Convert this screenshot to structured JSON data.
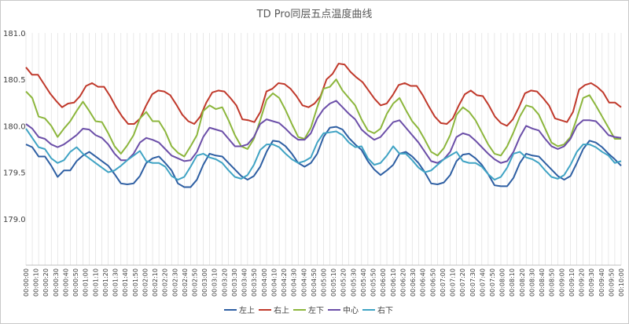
{
  "chart_data": {
    "type": "line",
    "title": "TD  Pro同层五点温度曲线",
    "xlabel": "",
    "ylabel": "",
    "ylim": [
      178.5,
      181.0
    ],
    "y_ticks": [
      "181.0",
      "180.5",
      "180.0",
      "179.5",
      "179.0"
    ],
    "y_tick_values": [
      181.0,
      180.5,
      180.0,
      179.5,
      179.0
    ],
    "x_tick_labels": [
      "00:00:00",
      "00:00:10",
      "00:00:20",
      "00:00:30",
      "00:00:40",
      "00:00:50",
      "00:01:00",
      "00:01:10",
      "00:01:20",
      "00:01:30",
      "00:01:40",
      "00:01:50",
      "00:02:00",
      "00:02:10",
      "00:02:20",
      "00:02:30",
      "00:02:40",
      "00:02:50",
      "00:03:00",
      "00:03:10",
      "00:03:20",
      "00:03:30",
      "00:03:40",
      "00:03:50",
      "00:04:00",
      "00:04:10",
      "00:04:20",
      "00:04:30",
      "00:04:40",
      "00:04:50",
      "00:05:00",
      "00:05:10",
      "00:05:20",
      "00:05:30",
      "00:05:40",
      "00:05:50",
      "00:06:00",
      "00:06:10",
      "00:06:20",
      "00:06:30",
      "00:06:40",
      "00:06:50",
      "00:07:00",
      "00:07:10",
      "00:07:20",
      "00:07:30",
      "00:07:40",
      "00:07:50",
      "00:08:00",
      "00:08:10",
      "00:08:20",
      "00:08:30",
      "00:08:40",
      "00:08:50",
      "00:09:00",
      "00:09:10",
      "00:09:20",
      "00:09:30",
      "00:09:40",
      "00:09:50",
      "00:10:00"
    ],
    "legend_position": "bottom",
    "grid": "vertical lines at every sample",
    "series": [
      {
        "name": "左上",
        "color": "#2e5fa3",
        "values": [
          179.8,
          179.77,
          179.67,
          179.67,
          179.57,
          179.45,
          179.52,
          179.52,
          179.62,
          179.68,
          179.72,
          179.67,
          179.62,
          179.57,
          179.48,
          179.38,
          179.37,
          179.38,
          179.46,
          179.6,
          179.65,
          179.67,
          179.6,
          179.52,
          179.38,
          179.34,
          179.34,
          179.42,
          179.58,
          179.7,
          179.68,
          179.67,
          179.6,
          179.53,
          179.46,
          179.42,
          179.46,
          179.56,
          179.72,
          179.84,
          179.83,
          179.78,
          179.7,
          179.6,
          179.56,
          179.6,
          179.7,
          179.88,
          179.98,
          179.99,
          179.96,
          179.87,
          179.8,
          179.74,
          179.62,
          179.53,
          179.47,
          179.52,
          179.58,
          179.7,
          179.72,
          179.67,
          179.6,
          179.5,
          179.38,
          179.37,
          179.39,
          179.47,
          179.62,
          179.69,
          179.7,
          179.65,
          179.58,
          179.48,
          179.36,
          179.35,
          179.35,
          179.44,
          179.6,
          179.7,
          179.68,
          179.67,
          179.6,
          179.53,
          179.46,
          179.42,
          179.46,
          179.6,
          179.75,
          179.84,
          179.82,
          179.77,
          179.7,
          179.64,
          179.57
        ]
      },
      {
        "name": "右上",
        "color": "#c0392b",
        "values": [
          180.63,
          180.55,
          180.55,
          180.45,
          180.35,
          180.27,
          180.2,
          180.24,
          180.25,
          180.32,
          180.43,
          180.46,
          180.42,
          180.42,
          180.32,
          180.2,
          180.1,
          180.02,
          180.02,
          180.08,
          180.22,
          180.34,
          180.38,
          180.37,
          180.33,
          180.23,
          180.12,
          180.05,
          180.02,
          180.1,
          180.25,
          180.36,
          180.38,
          180.37,
          180.3,
          180.22,
          180.07,
          180.06,
          180.04,
          180.15,
          180.37,
          180.4,
          180.46,
          180.45,
          180.4,
          180.32,
          180.22,
          180.2,
          180.24,
          180.32,
          180.5,
          180.56,
          180.67,
          180.66,
          180.58,
          180.52,
          180.47,
          180.38,
          180.29,
          180.22,
          180.24,
          180.33,
          180.44,
          180.46,
          180.43,
          180.43,
          180.33,
          180.21,
          180.1,
          180.03,
          180.02,
          180.08,
          180.22,
          180.34,
          180.38,
          180.33,
          180.32,
          180.22,
          180.1,
          180.03,
          180.0,
          180.07,
          180.2,
          180.35,
          180.38,
          180.37,
          180.3,
          180.22,
          180.08,
          180.06,
          180.04,
          180.15,
          180.39,
          180.44,
          180.46,
          180.42,
          180.36,
          180.25,
          180.25,
          180.2
        ]
      },
      {
        "name": "左下",
        "color": "#8cb63c",
        "values": [
          180.37,
          180.3,
          180.1,
          180.08,
          180.0,
          179.88,
          179.97,
          180.05,
          180.16,
          180.26,
          180.16,
          180.05,
          180.04,
          179.92,
          179.78,
          179.7,
          179.79,
          179.9,
          180.08,
          180.15,
          180.05,
          180.05,
          179.94,
          179.78,
          179.71,
          179.67,
          179.78,
          179.9,
          180.16,
          180.22,
          180.18,
          180.2,
          180.06,
          179.9,
          179.78,
          179.75,
          179.86,
          180.06,
          180.28,
          180.35,
          180.3,
          180.17,
          180.02,
          179.88,
          179.86,
          179.98,
          180.2,
          180.4,
          180.42,
          180.5,
          180.38,
          180.3,
          180.22,
          180.07,
          179.95,
          179.92,
          179.97,
          180.13,
          180.24,
          180.3,
          180.17,
          180.05,
          179.97,
          179.85,
          179.72,
          179.68,
          179.76,
          179.9,
          180.12,
          180.2,
          180.15,
          180.06,
          179.93,
          179.8,
          179.7,
          179.68,
          179.78,
          179.93,
          180.1,
          180.22,
          180.2,
          180.12,
          179.97,
          179.82,
          179.78,
          179.8,
          179.88,
          180.08,
          180.3,
          180.33,
          180.22,
          180.1,
          179.98,
          179.86,
          179.86
        ]
      },
      {
        "name": "中心",
        "color": "#6b4ea8",
        "values": [
          180.02,
          179.97,
          179.88,
          179.86,
          179.8,
          179.77,
          179.8,
          179.85,
          179.9,
          179.97,
          179.96,
          179.9,
          179.87,
          179.8,
          179.7,
          179.63,
          179.63,
          179.7,
          179.82,
          179.87,
          179.85,
          179.82,
          179.75,
          179.68,
          179.65,
          179.62,
          179.63,
          179.72,
          179.88,
          179.98,
          179.96,
          179.94,
          179.86,
          179.78,
          179.78,
          179.8,
          179.88,
          180.02,
          180.07,
          180.05,
          180.03,
          179.97,
          179.9,
          179.85,
          179.85,
          179.92,
          180.08,
          180.18,
          180.24,
          180.27,
          180.2,
          180.13,
          180.07,
          179.96,
          179.9,
          179.85,
          179.88,
          179.96,
          180.04,
          180.06,
          179.98,
          179.9,
          179.82,
          179.72,
          179.62,
          179.6,
          179.64,
          179.72,
          179.88,
          179.92,
          179.9,
          179.84,
          179.77,
          179.7,
          179.64,
          179.6,
          179.62,
          179.72,
          179.88,
          180.0,
          179.97,
          179.95,
          179.86,
          179.78,
          179.75,
          179.78,
          179.86,
          180.0,
          180.06,
          180.06,
          180.05,
          179.98,
          179.9,
          179.88,
          179.87
        ]
      },
      {
        "name": "右下",
        "color": "#3fa3c4",
        "values": [
          179.97,
          179.87,
          179.77,
          179.75,
          179.65,
          179.6,
          179.63,
          179.72,
          179.77,
          179.7,
          179.65,
          179.6,
          179.55,
          179.5,
          179.52,
          179.57,
          179.63,
          179.68,
          179.73,
          179.62,
          179.6,
          179.6,
          179.56,
          179.46,
          179.42,
          179.45,
          179.56,
          179.68,
          179.7,
          179.66,
          179.64,
          179.6,
          179.52,
          179.45,
          179.43,
          179.47,
          179.58,
          179.74,
          179.8,
          179.8,
          179.77,
          179.7,
          179.64,
          179.6,
          179.62,
          179.66,
          179.82,
          179.92,
          179.93,
          179.94,
          179.9,
          179.82,
          179.77,
          179.78,
          179.65,
          179.58,
          179.6,
          179.68,
          179.78,
          179.7,
          179.7,
          179.63,
          179.55,
          179.5,
          179.52,
          179.58,
          179.64,
          179.68,
          179.72,
          179.62,
          179.6,
          179.6,
          179.56,
          179.48,
          179.42,
          179.45,
          179.55,
          179.7,
          179.72,
          179.66,
          179.64,
          179.6,
          179.52,
          179.45,
          179.43,
          179.47,
          179.58,
          179.72,
          179.8,
          179.8,
          179.77,
          179.72,
          179.68,
          179.6,
          179.62
        ]
      }
    ]
  }
}
